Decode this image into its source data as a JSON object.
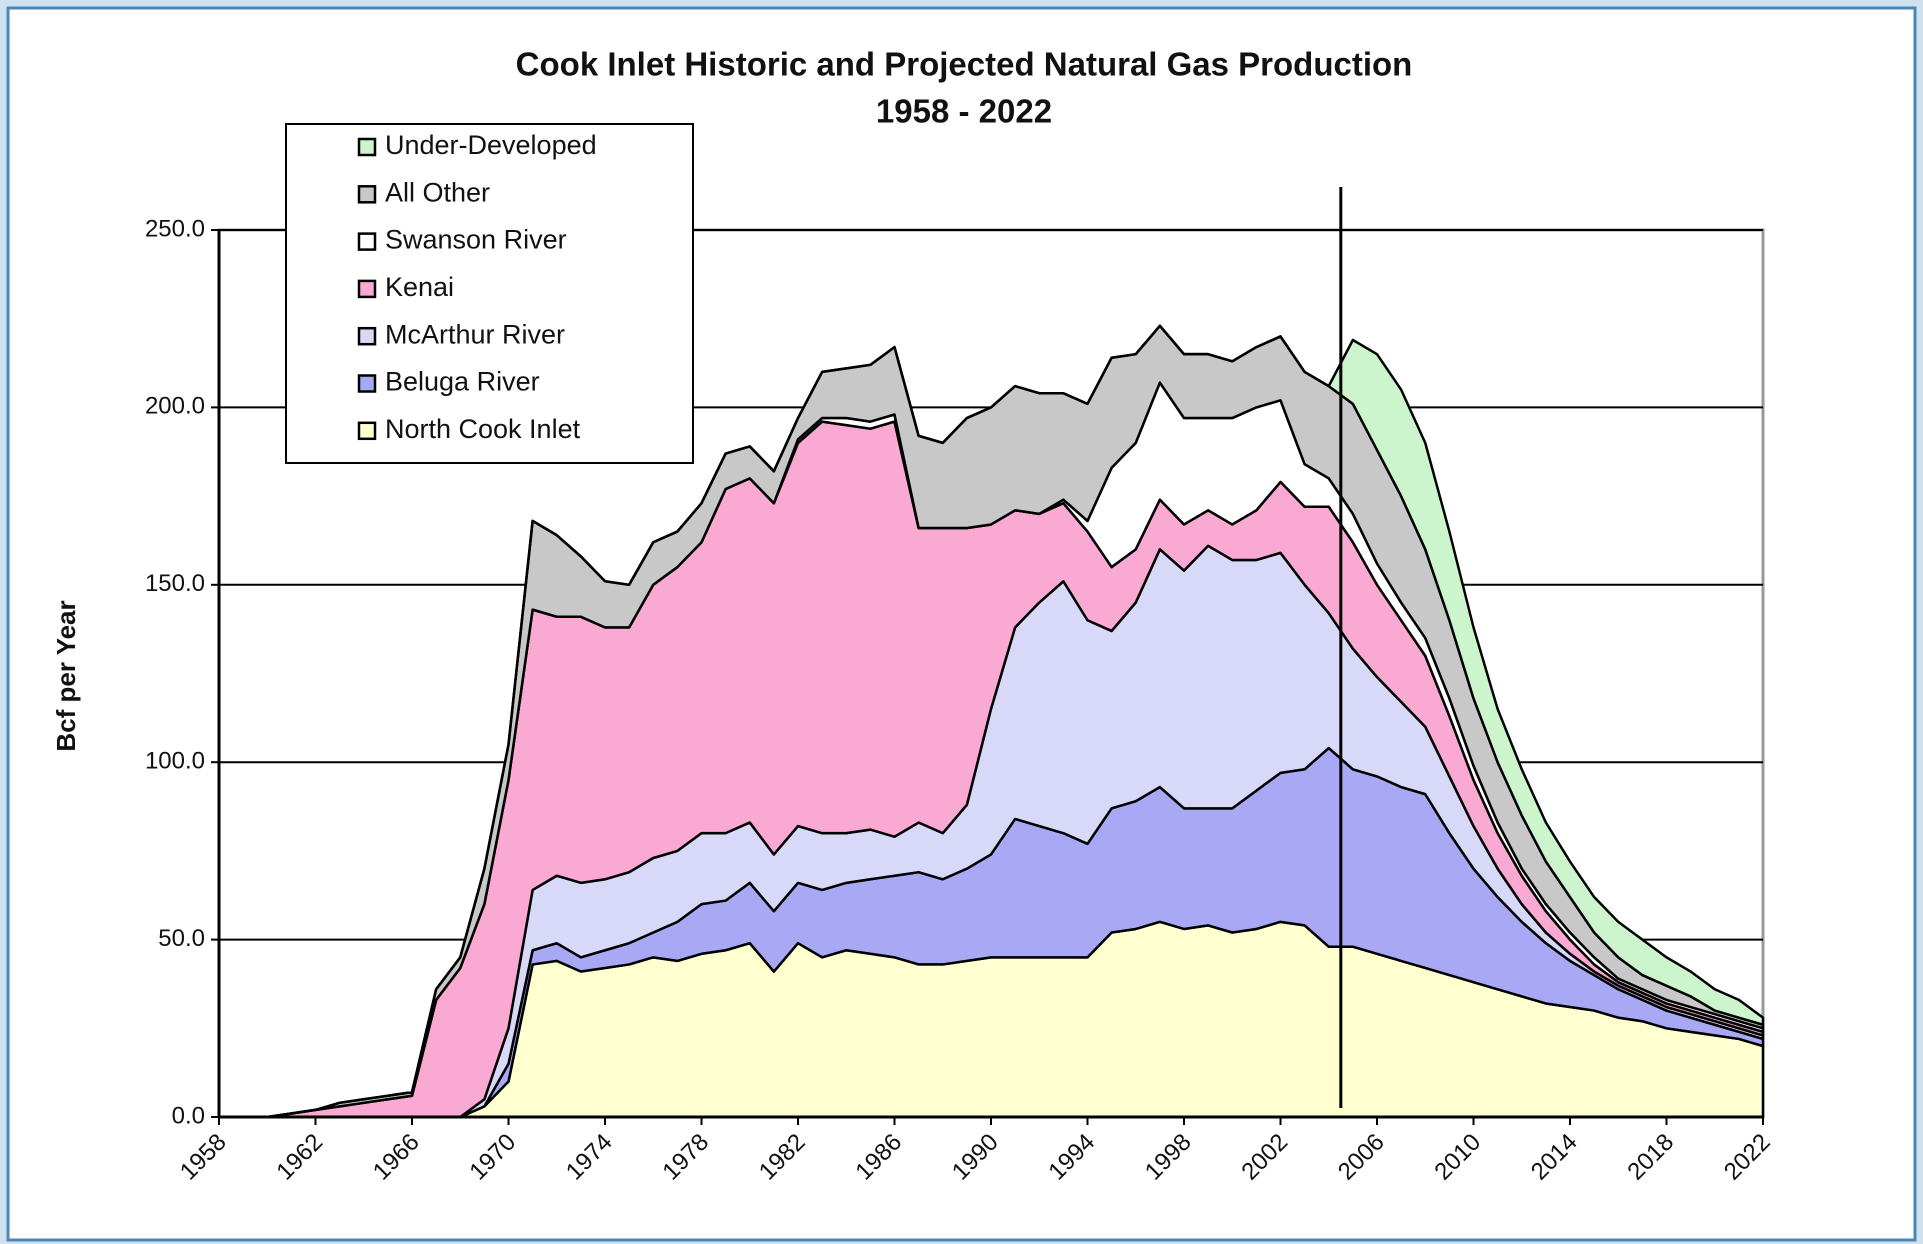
{
  "chart_data": {
    "type": "stacked_area",
    "title": "Cook Inlet Historic and Projected Natural Gas Production",
    "subtitle": "1958 - 2022",
    "y_label": "Bcf per Year",
    "x": [
      1958,
      1959,
      1960,
      1961,
      1962,
      1963,
      1964,
      1965,
      1966,
      1967,
      1968,
      1969,
      1970,
      1971,
      1972,
      1973,
      1974,
      1975,
      1976,
      1977,
      1978,
      1979,
      1980,
      1981,
      1982,
      1983,
      1984,
      1985,
      1986,
      1987,
      1988,
      1989,
      1990,
      1991,
      1992,
      1993,
      1994,
      1995,
      1996,
      1997,
      1998,
      1999,
      2000,
      2001,
      2002,
      2003,
      2004,
      2005,
      2006,
      2007,
      2008,
      2009,
      2010,
      2011,
      2012,
      2013,
      2014,
      2015,
      2016,
      2017,
      2018,
      2019,
      2020,
      2021,
      2022
    ],
    "xlim": [
      1958,
      2022
    ],
    "xticks": [
      1958,
      1962,
      1966,
      1970,
      1974,
      1978,
      1982,
      1986,
      1990,
      1994,
      1998,
      2002,
      2006,
      2010,
      2014,
      2018,
      2022
    ],
    "ylim": [
      0,
      250
    ],
    "yticks": [
      {
        "value": 0,
        "label": "0.0"
      },
      {
        "value": 50,
        "label": "50.0"
      },
      {
        "value": 100,
        "label": "100.0"
      },
      {
        "value": 150,
        "label": "150.0"
      },
      {
        "value": 200,
        "label": "200.0"
      },
      {
        "value": 250,
        "label": "250.0"
      }
    ],
    "grid": true,
    "legend": "upper left",
    "divider_x": 2004.5,
    "series": [
      {
        "name": "North Cook Inlet",
        "color": "#ffffd0",
        "values": [
          0,
          0,
          0,
          0,
          0,
          0,
          0,
          0,
          0,
          0,
          0,
          3,
          10,
          43,
          44,
          41,
          42,
          43,
          45,
          44,
          46,
          47,
          49,
          41,
          49,
          45,
          47,
          46,
          45,
          43,
          43,
          44,
          45,
          45,
          45,
          45,
          45,
          52,
          53,
          55,
          53,
          54,
          52,
          53,
          55,
          54,
          48,
          48,
          46,
          44,
          42,
          40,
          38,
          36,
          34,
          32,
          31,
          30,
          28,
          27,
          25,
          24,
          23,
          22,
          20
        ]
      },
      {
        "name": "Beluga River",
        "color": "#a8a8f4",
        "values": [
          0,
          0,
          0,
          0,
          0,
          0,
          0,
          0,
          0,
          0,
          0,
          0,
          5,
          4,
          5,
          4,
          5,
          6,
          7,
          11,
          14,
          14,
          17,
          17,
          17,
          19,
          19,
          21,
          23,
          26,
          24,
          26,
          29,
          39,
          37,
          35,
          32,
          35,
          36,
          38,
          34,
          33,
          35,
          39,
          42,
          44,
          56,
          50,
          50,
          49,
          49,
          40,
          32,
          26,
          21,
          17,
          13,
          10,
          8,
          6,
          5,
          4,
          3,
          2,
          2
        ]
      },
      {
        "name": "McArthur River",
        "color": "#d8d8f8",
        "values": [
          0,
          0,
          0,
          0,
          0,
          0,
          0,
          0,
          0,
          0,
          0,
          2,
          10,
          17,
          19,
          21,
          20,
          20,
          21,
          20,
          20,
          19,
          17,
          16,
          16,
          16,
          14,
          14,
          11,
          14,
          13,
          18,
          41,
          54,
          63,
          71,
          63,
          50,
          56,
          67,
          67,
          74,
          70,
          65,
          62,
          52,
          38,
          34,
          28,
          24,
          19,
          16,
          12,
          8,
          5,
          3,
          2,
          1,
          1,
          1,
          1,
          1,
          1,
          1,
          1
        ]
      },
      {
        "name": "Kenai",
        "color": "#f9a9d2",
        "values": [
          0,
          0,
          0,
          1,
          2,
          3,
          4,
          5,
          6,
          33,
          42,
          55,
          70,
          79,
          73,
          75,
          71,
          69,
          77,
          80,
          82,
          97,
          97,
          99,
          108,
          116,
          115,
          113,
          117,
          83,
          86,
          78,
          52,
          33,
          25,
          22,
          25,
          18,
          15,
          14,
          13,
          10,
          10,
          14,
          20,
          22,
          30,
          30,
          26,
          23,
          20,
          17,
          13,
          10,
          8,
          6,
          4,
          2,
          1,
          1,
          1,
          1,
          1,
          1,
          1
        ]
      },
      {
        "name": "Swanson River",
        "color": "#ffffff",
        "values": [
          0,
          0,
          0,
          0,
          0,
          0,
          0,
          0,
          0,
          0,
          0,
          0,
          0,
          0,
          0,
          0,
          0,
          0,
          0,
          0,
          0,
          0,
          0,
          0,
          1,
          1,
          2,
          2,
          2,
          0,
          0,
          0,
          0,
          0,
          0,
          1,
          3,
          28,
          30,
          33,
          30,
          26,
          30,
          29,
          23,
          12,
          8,
          8,
          6,
          5,
          5,
          5,
          4,
          3,
          2,
          2,
          2,
          2,
          1,
          1,
          1,
          1,
          1,
          1,
          1
        ]
      },
      {
        "name": "All Other",
        "color": "#c8c8c8",
        "values": [
          0,
          0,
          0,
          0,
          0,
          1,
          1,
          1,
          1,
          3,
          3,
          10,
          10,
          25,
          23,
          17,
          13,
          12,
          12,
          10,
          11,
          10,
          9,
          9,
          6,
          13,
          14,
          16,
          19,
          26,
          24,
          31,
          33,
          35,
          34,
          30,
          33,
          31,
          25,
          16,
          18,
          18,
          16,
          17,
          18,
          26,
          26,
          31,
          32,
          30,
          25,
          22,
          19,
          17,
          15,
          12,
          10,
          7,
          6,
          4,
          4,
          3,
          1,
          1,
          1
        ]
      },
      {
        "name": "Under-Developed",
        "color": "#cdf5cd",
        "values": [
          0,
          0,
          0,
          0,
          0,
          0,
          0,
          0,
          0,
          0,
          0,
          0,
          0,
          0,
          0,
          0,
          0,
          0,
          0,
          0,
          0,
          0,
          0,
          0,
          0,
          0,
          0,
          0,
          0,
          0,
          0,
          0,
          0,
          0,
          0,
          0,
          0,
          0,
          0,
          0,
          0,
          0,
          0,
          0,
          0,
          0,
          0,
          18,
          27,
          30,
          30,
          25,
          20,
          15,
          13,
          11,
          10,
          10,
          10,
          10,
          8,
          7,
          6,
          5,
          2
        ]
      }
    ]
  }
}
